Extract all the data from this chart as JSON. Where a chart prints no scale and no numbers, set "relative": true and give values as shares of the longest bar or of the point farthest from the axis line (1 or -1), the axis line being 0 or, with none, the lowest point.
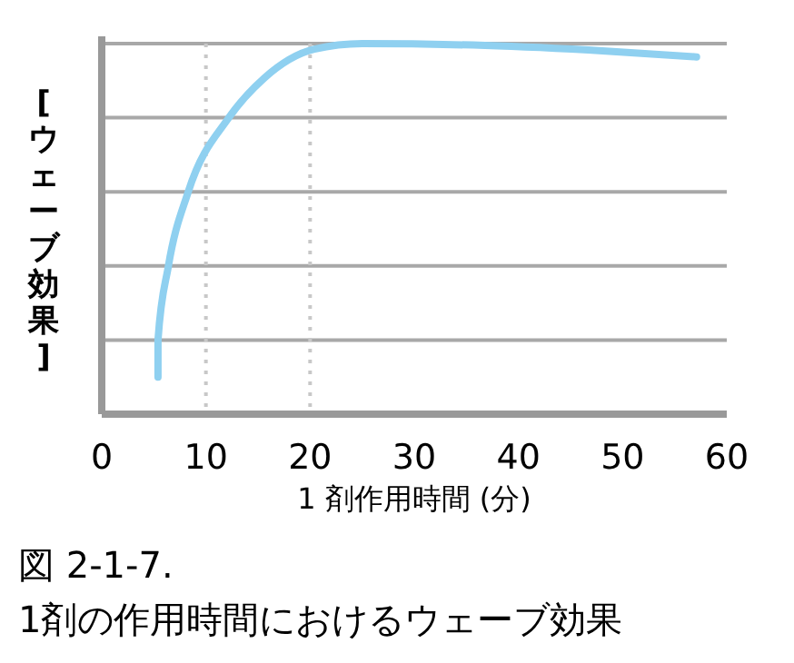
{
  "chart_data": {
    "type": "line",
    "title": "図 2-1-7.",
    "subtitle": "1剤の作用時間におけるウェーブ効果",
    "xlabel": "1 剤作用時間 (分)",
    "ylabel": "[ウェーブ効果]",
    "relative": true,
    "xlim": [
      0,
      60
    ],
    "xticks": [
      0,
      10,
      20,
      30,
      40,
      50,
      60
    ],
    "grid": "y",
    "marker": "none",
    "line_style": "solid",
    "x": [
      5.4,
      5.4,
      6.4,
      8.3,
      12.2,
      15.6,
      20.4,
      25,
      36.8,
      48.4,
      57.1
    ],
    "series": [
      {
        "color": "#8fd0f0",
        "values": [
          0.1,
          0.2,
          0.4,
          0.6,
          0.8,
          0.907,
          0.985,
          1.0,
          0.995,
          0.98,
          0.964
        ]
      }
    ],
    "ref_lines": [
      {
        "axis": "x",
        "value": 10,
        "line_style": "dotted",
        "color": "#c8c8c8"
      },
      {
        "axis": "x",
        "value": 20,
        "line_style": "dotted",
        "color": "#c8c8c8"
      }
    ]
  }
}
